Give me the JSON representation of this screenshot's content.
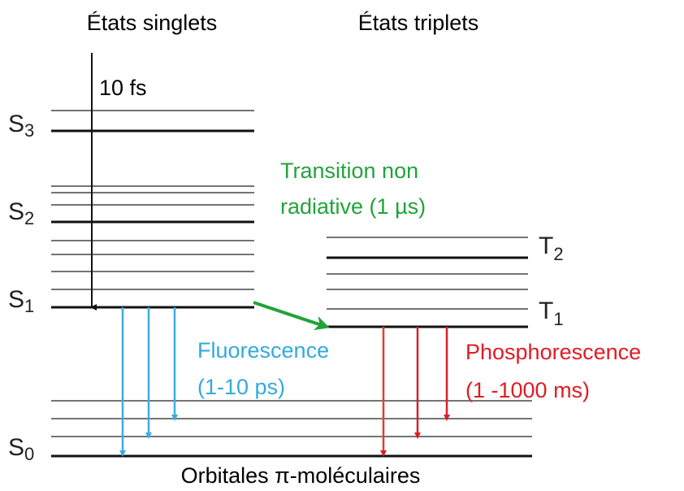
{
  "header": {
    "singlets": "États singlets",
    "triplets": "États triplets"
  },
  "arrow_label": "10 fs",
  "levels": [
    {
      "letter": "S",
      "sub": "3"
    },
    {
      "letter": "S",
      "sub": "2"
    },
    {
      "letter": "S",
      "sub": "1"
    },
    {
      "letter": "S",
      "sub": "0"
    },
    {
      "letter": "T",
      "sub": "2"
    },
    {
      "letter": "T",
      "sub": "1"
    }
  ],
  "transition": [
    "Transition non",
    "radiative (1 µs)"
  ],
  "fluorescence": [
    "Fluorescence",
    "(1-10 ps)"
  ],
  "phosphorescence": [
    "Phosphorescence",
    "(1 -1000 ms)"
  ],
  "footer": "Orbitales π-moléculaires"
}
